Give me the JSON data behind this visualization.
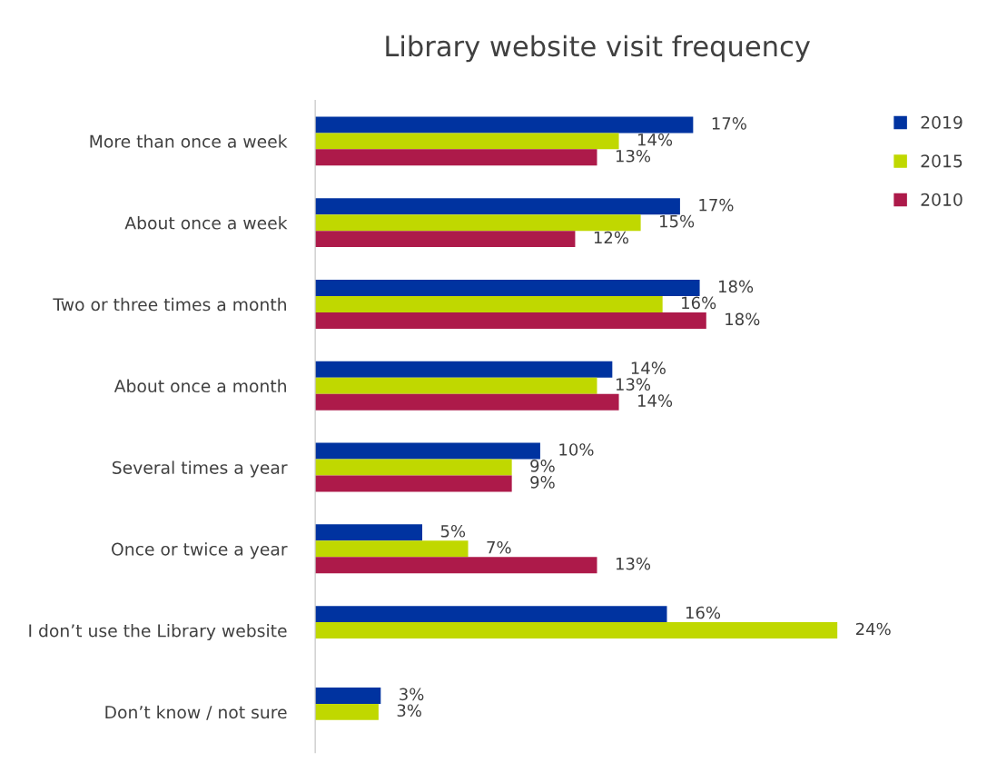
{
  "chart_data": {
    "type": "bar",
    "orientation": "horizontal",
    "title": "Library website visit frequency",
    "categories": [
      "More than once a week",
      "About once a week",
      "Two or three times a month",
      "About once a month",
      "Several times a year",
      "Once or twice a year",
      "I don’t use the Library website",
      "Don’t know / not sure"
    ],
    "series": [
      {
        "name": "2019",
        "color": "#0033a0",
        "values": [
          17.3,
          16.7,
          17.6,
          13.6,
          10.3,
          4.9,
          16.1,
          3.0
        ],
        "value_labels": [
          "17%",
          "17%",
          "18%",
          "14%",
          "10%",
          "5%",
          "16%",
          "3%"
        ]
      },
      {
        "name": "2015",
        "color": "#c0d800",
        "values": [
          13.9,
          14.9,
          15.9,
          12.9,
          9.0,
          7.0,
          23.9,
          2.9
        ],
        "value_labels": [
          "14%",
          "15%",
          "16%",
          "13%",
          "9%",
          "7%",
          "24%",
          "3%"
        ]
      },
      {
        "name": "2010",
        "color": "#ad1a4a",
        "values": [
          12.9,
          11.9,
          17.9,
          13.9,
          9.0,
          12.9,
          null,
          null
        ],
        "value_labels": [
          "13%",
          "12%",
          "18%",
          "14%",
          "9%",
          "13%",
          null,
          null
        ]
      }
    ],
    "legend": "top right",
    "grid": false
  }
}
